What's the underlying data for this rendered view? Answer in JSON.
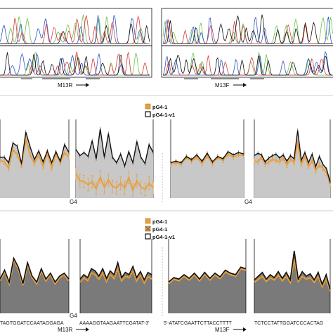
{
  "figure": {
    "trace_labels": {
      "left": "M13R",
      "right": "M13F"
    },
    "sequence_labels": {
      "left": "M13R",
      "right": "M13F"
    },
    "sequences": [
      "TAGTGGATCCAATAGGAGA",
      "AAAAGGTAAGAATTCGATAT-3'",
      "5'-ATATCGAATTCTTACCTTTT",
      "TCTCCTATTGGATCCCACTAG"
    ],
    "g4_label": "G4",
    "colors": {
      "orange": "#e8a040",
      "dark": "#111111",
      "mid_fill": "#c8c8c8",
      "bottom_fill": "#7a7a7a",
      "chrom_green": "#6cc04a",
      "chrom_blue": "#2f55c8",
      "chrom_red": "#d93a3a",
      "chrom_black": "#111111"
    }
  },
  "chart_data": [
    {
      "type": "line",
      "panel": "middle",
      "legend": [
        "pG4-1",
        "pG4-1-v1"
      ],
      "legend_placement": "top-center",
      "grid": false,
      "ylim": [
        0,
        1
      ],
      "subplots": [
        {
          "id": "A",
          "series": [
            {
              "name": "pG4-1",
              "values": [
                0.48,
                0.46,
                0.38,
                0.62,
                0.55,
                0.42,
                0.75,
                0.55,
                0.44,
                0.55,
                0.4,
                0.57,
                0.38,
                0.56,
                0.45,
                0.58,
                0.52
              ]
            },
            {
              "name": "pG4-1-v1",
              "values": [
                0.52,
                0.52,
                0.45,
                0.7,
                0.66,
                0.44,
                0.84,
                0.65,
                0.49,
                0.6,
                0.46,
                0.6,
                0.45,
                0.59,
                0.47,
                0.68,
                0.58
              ]
            }
          ]
        },
        {
          "id": "B",
          "series": [
            {
              "name": "pG4-1",
              "values": [
                0.31,
                0.22,
                0.21,
                0.17,
                0.21,
                0.12,
                0.27,
                0.14,
                0.23,
                0.15,
                0.13,
                0.19,
                0.13,
                0.26,
                0.1,
                0.22,
                0.14,
                0.11,
                0.19,
                0.13
              ]
            },
            {
              "name": "pG4-1-v1",
              "values": [
                0.62,
                0.54,
                0.58,
                0.53,
                0.73,
                0.5,
                0.88,
                0.52,
                0.82,
                0.52,
                0.45,
                0.56,
                0.41,
                0.59,
                0.45,
                0.72,
                0.52,
                0.44,
                0.68,
                0.58
              ]
            }
          ]
        },
        {
          "id": "C",
          "series": [
            {
              "name": "pG4-1",
              "values": [
                0.43,
                0.45,
                0.43,
                0.52,
                0.47,
                0.52,
                0.44,
                0.54,
                0.44,
                0.52,
                0.48,
                0.56,
                0.52,
                0.55,
                0.54
              ]
            },
            {
              "name": "pG4-1-v1",
              "values": [
                0.45,
                0.47,
                0.45,
                0.53,
                0.49,
                0.55,
                0.47,
                0.57,
                0.46,
                0.53,
                0.5,
                0.59,
                0.55,
                0.58,
                0.56
              ]
            }
          ]
        },
        {
          "id": "D",
          "series": [
            {
              "name": "pG4-1",
              "values": [
                0.47,
                0.46,
                0.52,
                0.43,
                0.46,
                0.49,
                0.48,
                0.46,
                0.51,
                0.42,
                0.5,
                0.45,
                0.71,
                0.43,
                0.53,
                0.4,
                0.48,
                0.35,
                0.42,
                0.38,
                0.32,
                0.18
              ]
            },
            {
              "name": "pG4-1-v1",
              "values": [
                0.54,
                0.57,
                0.55,
                0.46,
                0.51,
                0.54,
                0.56,
                0.51,
                0.55,
                0.47,
                0.54,
                0.5,
                0.86,
                0.48,
                0.58,
                0.45,
                0.56,
                0.4,
                0.53,
                0.43,
                0.37,
                0.2
              ]
            }
          ]
        }
      ]
    },
    {
      "type": "area",
      "panel": "bottom",
      "legend": [
        "pG4-1",
        "pG4-1",
        "pG4-1-v1"
      ],
      "legend_placement": "top-center",
      "grid": false,
      "ylim": [
        0,
        1
      ],
      "subplots": [
        {
          "id": "A",
          "series": [
            {
              "name": "pG4-1",
              "values": [
                0.44,
                0.56,
                0.4,
                0.72,
                0.6,
                0.38,
                0.66,
                0.48,
                0.4,
                0.58,
                0.44,
                0.52,
                0.4,
                0.48,
                0.52,
                0.44
              ]
            },
            {
              "name": "pG4-1",
              "values": [
                0.45,
                0.57,
                0.41,
                0.73,
                0.61,
                0.39,
                0.67,
                0.49,
                0.41,
                0.59,
                0.45,
                0.53,
                0.41,
                0.49,
                0.53,
                0.45
              ]
            },
            {
              "name": "pG4-1-v1",
              "values": [
                0.46,
                0.58,
                0.42,
                0.74,
                0.62,
                0.4,
                0.68,
                0.5,
                0.42,
                0.6,
                0.46,
                0.54,
                0.42,
                0.5,
                0.54,
                0.46
              ]
            }
          ]
        },
        {
          "id": "B",
          "series": [
            {
              "name": "pG4-1",
              "values": [
                0.42,
                0.48,
                0.44,
                0.55,
                0.52,
                0.46,
                0.55,
                0.43,
                0.53,
                0.47,
                0.6,
                0.44,
                0.5,
                0.48,
                0.58,
                0.44,
                0.52,
                0.41,
                0.5,
                0.46
              ]
            },
            {
              "name": "pG4-1",
              "values": [
                0.43,
                0.49,
                0.45,
                0.56,
                0.53,
                0.47,
                0.56,
                0.44,
                0.54,
                0.48,
                0.61,
                0.45,
                0.51,
                0.49,
                0.59,
                0.45,
                0.53,
                0.42,
                0.51,
                0.47
              ]
            },
            {
              "name": "pG4-1-v1",
              "values": [
                0.46,
                0.52,
                0.48,
                0.6,
                0.57,
                0.5,
                0.6,
                0.47,
                0.57,
                0.52,
                0.68,
                0.48,
                0.55,
                0.52,
                0.63,
                0.48,
                0.56,
                0.45,
                0.55,
                0.52
              ]
            }
          ]
        },
        {
          "id": "C",
          "series": [
            {
              "name": "pG4-1",
              "values": [
                0.4,
                0.46,
                0.44,
                0.5,
                0.45,
                0.52,
                0.44,
                0.53,
                0.45,
                0.52,
                0.47,
                0.56,
                0.52,
                0.5,
                0.6,
                0.58
              ]
            },
            {
              "name": "pG4-1",
              "values": [
                0.41,
                0.47,
                0.45,
                0.51,
                0.46,
                0.53,
                0.45,
                0.54,
                0.46,
                0.53,
                0.48,
                0.57,
                0.53,
                0.51,
                0.61,
                0.59
              ]
            },
            {
              "name": "pG4-1-v1",
              "values": [
                0.42,
                0.48,
                0.46,
                0.52,
                0.47,
                0.54,
                0.46,
                0.55,
                0.47,
                0.54,
                0.49,
                0.58,
                0.54,
                0.52,
                0.62,
                0.6
              ]
            }
          ]
        },
        {
          "id": "D",
          "series": [
            {
              "name": "pG4-1",
              "values": [
                0.42,
                0.46,
                0.5,
                0.43,
                0.48,
                0.45,
                0.52,
                0.44,
                0.5,
                0.42,
                0.75,
                0.43,
                0.5,
                0.46,
                0.48,
                0.42,
                0.5,
                0.36,
                0.46,
                0.3
              ]
            },
            {
              "name": "pG4-1",
              "values": [
                0.43,
                0.47,
                0.51,
                0.44,
                0.49,
                0.46,
                0.53,
                0.45,
                0.51,
                0.43,
                0.76,
                0.44,
                0.51,
                0.47,
                0.49,
                0.43,
                0.51,
                0.37,
                0.47,
                0.31
              ]
            },
            {
              "name": "pG4-1-v1",
              "values": [
                0.45,
                0.5,
                0.55,
                0.46,
                0.52,
                0.48,
                0.56,
                0.47,
                0.55,
                0.45,
                0.84,
                0.46,
                0.56,
                0.5,
                0.53,
                0.45,
                0.55,
                0.39,
                0.52,
                0.32
              ]
            }
          ]
        }
      ]
    }
  ]
}
